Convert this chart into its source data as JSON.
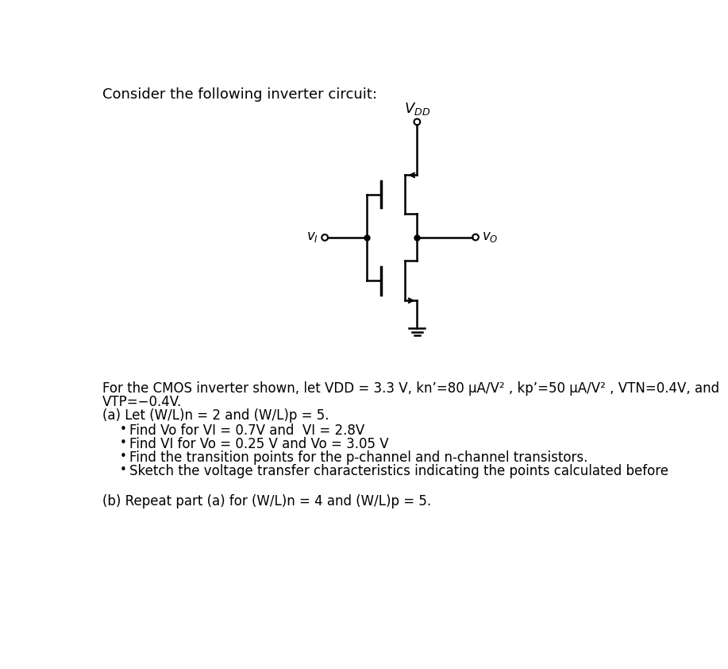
{
  "title_text": "Consider the following inverter circuit:",
  "background_color": "#ffffff",
  "body_text_line1": "For the CMOS inverter shown, let VDD = 3.3 V, kn’=80 μA/V² , kp’=50 μA/V² , VTN=0.4V, and",
  "body_text_line2": "VTP=−0.4V.",
  "body_text_line3": "(a) Let (W/L)n = 2 and (W/L)p = 5.",
  "bullet1": "Find Vo for VI = 0.7V and  VI = 2.8V",
  "bullet2": "Find VI for Vo = 0.25 V and Vo = 3.05 V",
  "bullet3": "Find the transition points for the p-channel and n-channel transistors.",
  "bullet4": "Sketch the voltage transfer characteristics indicating the points calculated before",
  "body_text_partb": "(b) Repeat part (a) for (W/L)n = 4 and (W/L)p = 5.",
  "figsize": [
    9.17,
    8.42
  ],
  "dpi": 100
}
